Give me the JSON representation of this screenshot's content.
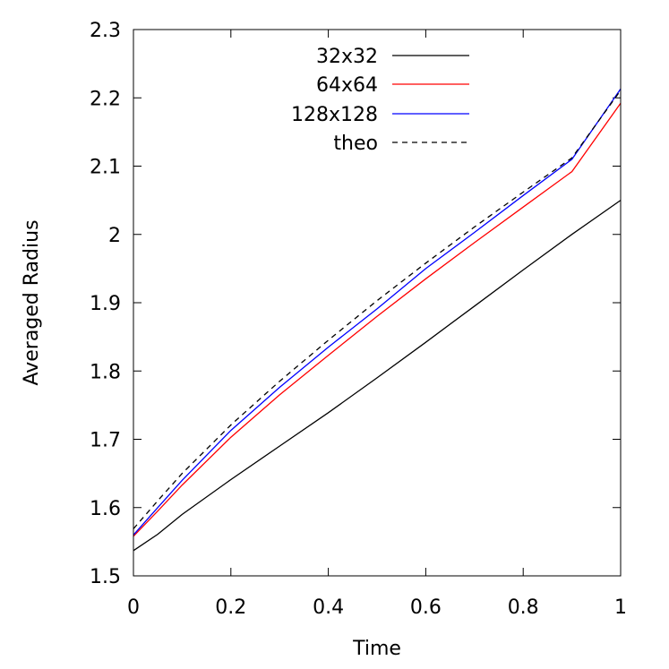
{
  "chart_data": {
    "type": "line",
    "xlabel": "Time",
    "ylabel": "Averaged Radius",
    "xlim": [
      0,
      1
    ],
    "ylim": [
      1.5,
      2.3
    ],
    "x_ticks": [
      "0",
      "0.2",
      "0.4",
      "0.6",
      "0.8",
      "1"
    ],
    "y_ticks": [
      "1.5",
      "1.6",
      "1.7",
      "1.8",
      "1.9",
      "2",
      "2.1",
      "2.2",
      "2.3"
    ],
    "grid": false,
    "legend_position": "top-right",
    "series": [
      {
        "name": "32x32",
        "color": "#000000",
        "dash": "solid",
        "x": [
          0,
          0.05,
          0.1,
          0.2,
          0.3,
          0.4,
          0.5,
          0.6,
          0.7,
          0.8,
          0.9,
          1.0
        ],
        "y": [
          1.537,
          1.561,
          1.59,
          1.641,
          1.69,
          1.739,
          1.79,
          1.842,
          1.895,
          1.948,
          2.0,
          2.05
        ]
      },
      {
        "name": "64x64",
        "color": "#ff0000",
        "dash": "solid",
        "x": [
          0,
          0.05,
          0.1,
          0.2,
          0.3,
          0.4,
          0.5,
          0.6,
          0.7,
          0.8,
          0.9,
          1.0
        ],
        "y": [
          1.558,
          1.595,
          1.633,
          1.703,
          1.765,
          1.823,
          1.88,
          1.935,
          1.988,
          2.04,
          2.092,
          2.192
        ]
      },
      {
        "name": "128x128",
        "color": "#0000ff",
        "dash": "solid",
        "x": [
          0,
          0.05,
          0.1,
          0.2,
          0.3,
          0.4,
          0.5,
          0.6,
          0.7,
          0.8,
          0.9,
          1.0
        ],
        "y": [
          1.56,
          1.6,
          1.64,
          1.713,
          1.776,
          1.835,
          1.891,
          1.95,
          2.003,
          2.057,
          2.11,
          2.213
        ]
      },
      {
        "name": "theo",
        "color": "#000000",
        "dash": "dashed",
        "x": [
          0,
          0.05,
          0.1,
          0.2,
          0.3,
          0.4,
          0.5,
          0.6,
          0.7,
          0.8,
          0.9,
          1.0
        ],
        "y": [
          1.569,
          1.61,
          1.65,
          1.721,
          1.785,
          1.845,
          1.903,
          1.958,
          2.011,
          2.062,
          2.112,
          2.211
        ]
      }
    ]
  }
}
